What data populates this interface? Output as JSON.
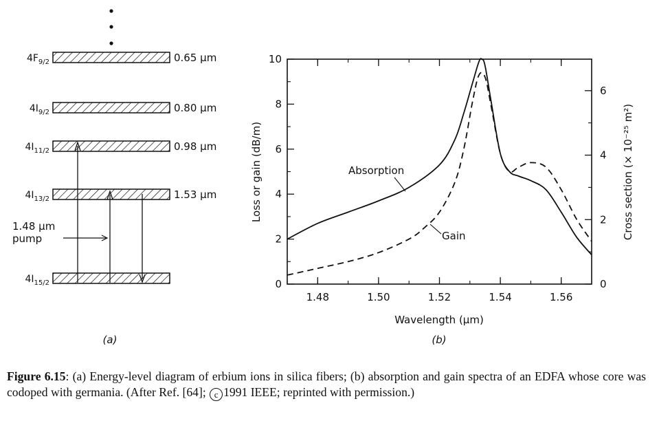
{
  "panel_a": {
    "levels": [
      {
        "name": "4F",
        "sub": "9/2",
        "wavelength": "0.65 µm"
      },
      {
        "name": "4I",
        "sub": "9/2",
        "wavelength": "0.80 µm"
      },
      {
        "name": "4I",
        "sub": "11/2",
        "wavelength": "0.98 µm"
      },
      {
        "name": "4I",
        "sub": "13/2",
        "wavelength": "1.53 µm"
      },
      {
        "name": "4I",
        "sub": "15/2",
        "wavelength": ""
      }
    ],
    "pump_label_1": "1.48 µm",
    "pump_label_2": "pump",
    "panel_label": "(a)"
  },
  "chart_data": {
    "type": "line",
    "title": "",
    "xlabel": "Wavelength (µm)",
    "ylabel": "Loss or gain (dB/m)",
    "y2label": "Cross section (× 10⁻²⁵ m²)",
    "xlim": [
      1.47,
      1.57
    ],
    "ylim": [
      0,
      10
    ],
    "xticks": [
      "1.48",
      "1.50",
      "1.52",
      "1.54",
      "1.56"
    ],
    "yticks": [
      "0",
      "2",
      "4",
      "6",
      "8",
      "10"
    ],
    "y2ticks": [
      "0",
      "2",
      "4",
      "6"
    ],
    "series": [
      {
        "name": "Absorption",
        "style": "solid",
        "x": [
          1.47,
          1.48,
          1.49,
          1.5,
          1.51,
          1.52,
          1.525,
          1.528,
          1.531,
          1.533,
          1.534,
          1.535,
          1.537,
          1.54,
          1.543,
          1.546,
          1.55,
          1.555,
          1.56,
          1.565,
          1.57
        ],
        "values": [
          2.0,
          2.7,
          3.2,
          3.7,
          4.3,
          5.3,
          6.4,
          7.6,
          9.0,
          9.9,
          10.0,
          9.7,
          8.1,
          5.8,
          5.0,
          4.8,
          4.6,
          4.2,
          3.2,
          2.1,
          1.3
        ]
      },
      {
        "name": "Gain",
        "style": "dashed",
        "x": [
          1.47,
          1.48,
          1.49,
          1.5,
          1.51,
          1.515,
          1.52,
          1.525,
          1.528,
          1.531,
          1.533,
          1.535,
          1.537,
          1.54,
          1.543,
          1.546,
          1.55,
          1.555,
          1.56,
          1.565,
          1.57
        ],
        "values": [
          0.4,
          0.7,
          1.0,
          1.4,
          2.0,
          2.5,
          3.2,
          4.5,
          6.0,
          8.2,
          9.3,
          9.2,
          7.9,
          5.8,
          5.0,
          5.2,
          5.4,
          5.2,
          4.2,
          2.9,
          1.9
        ]
      }
    ],
    "annotations": [
      "Absorption",
      "Gain"
    ],
    "panel_label": "(b)"
  },
  "caption": {
    "label": "Figure 6.15",
    "text_1": ": (a) Energy-level diagram of erbium ions in silica fibers; (b) absorption and gain spectra of an EDFA whose core was codoped with germania. (After Ref. [64]; ",
    "copyright_mark": "c",
    "text_2": "1991 IEEE; reprinted with permission.)"
  }
}
